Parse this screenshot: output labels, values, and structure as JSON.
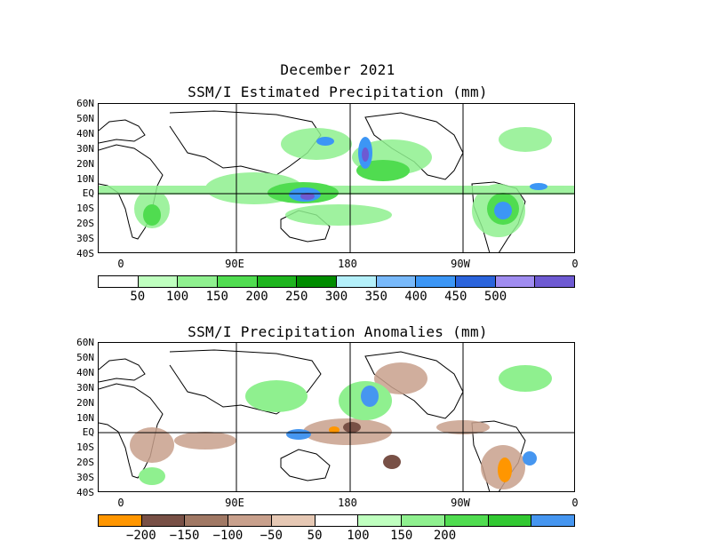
{
  "page": {
    "title_line1": "December 2021",
    "title_line2": "SSM/I Estimated Precipitation (mm)",
    "title_line3": "SSM/I Precipitation Anomalies (mm)"
  },
  "lat_labels": [
    "60N",
    "50N",
    "40N",
    "30N",
    "20N",
    "10N",
    "EQ",
    "10S",
    "20S",
    "30S",
    "40S"
  ],
  "lon_labels": [
    "0",
    "90E",
    "180",
    "90W",
    "0"
  ],
  "estimated_colorbar": {
    "colors": [
      "#ffffff",
      "#bfffbf",
      "#8ff08f",
      "#50dc50",
      "#1eb41e",
      "#008c00",
      "#b4f0fa",
      "#78b9fa",
      "#3c96f5",
      "#2b64dc",
      "#a08cf0",
      "#6e5ad2"
    ],
    "labels": [
      "50",
      "100",
      "150",
      "200",
      "250",
      "300",
      "350",
      "400",
      "450",
      "500"
    ]
  },
  "anomaly_colorbar": {
    "colors": [
      "#ff9600",
      "#785046",
      "#a07864",
      "#c8a08c",
      "#e6c8b4",
      "#ffffff",
      "#bfffbf",
      "#8ff08f",
      "#50dc50",
      "#32c832",
      "#4696f0"
    ],
    "labels": [
      "−200",
      "−150",
      "−100",
      "−50",
      "50",
      "100",
      "150",
      "200"
    ]
  },
  "colors": {
    "land_outline": "#000000",
    "grid": "#000000"
  }
}
